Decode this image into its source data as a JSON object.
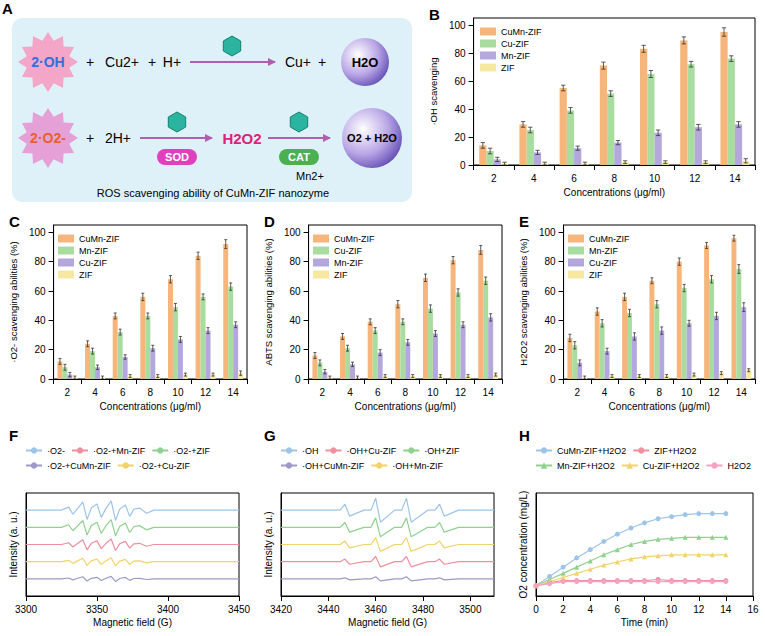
{
  "diagram": {
    "panel": "A",
    "caption": "ROS scavenging ability of CuMn-ZIF nanozyme",
    "operator": "+",
    "reaction1": {
      "reactants": [
        "2·OH",
        "Cu2+",
        "H+"
      ],
      "products": [
        "Cu+",
        "H2O"
      ]
    },
    "reaction2": {
      "reactants": [
        "2·O2-",
        "2H+"
      ],
      "enzyme1": "SOD",
      "intermediate": "H2O2",
      "enzyme2": "CAT",
      "cofactor": "Mn2+",
      "products": [
        "O2 + H2O"
      ]
    }
  },
  "chart_data": [
    {
      "panel": "B",
      "type": "bar",
      "x_label": "Concentrations (μg/ml)",
      "y_label": "·OH scavenging",
      "categories": [
        2,
        4,
        6,
        8,
        10,
        12,
        14
      ],
      "ylim": [
        0,
        105
      ],
      "yticks": [
        0,
        20,
        40,
        60,
        80,
        100
      ],
      "grid": false,
      "legend": "top-left",
      "series": [
        {
          "name": "CuMn-ZIF",
          "color": "#F6B57A",
          "values": [
            14,
            29,
            55,
            71,
            83,
            89,
            95
          ],
          "errors": [
            2,
            2,
            2,
            2.5,
            2.5,
            2.5,
            3
          ]
        },
        {
          "name": "Cu-ZIF",
          "color": "#A9DDA0",
          "values": [
            10,
            25,
            39,
            51,
            65,
            72,
            76
          ],
          "errors": [
            2,
            2,
            2,
            2,
            2.5,
            2,
            2
          ]
        },
        {
          "name": "Mn-ZIF",
          "color": "#B4A7DC",
          "values": [
            4,
            9,
            12,
            16,
            23,
            27,
            29
          ],
          "errors": [
            1.5,
            1.5,
            1.5,
            1.5,
            2,
            2,
            2
          ]
        },
        {
          "name": "ZIF",
          "color": "#F7E8A0",
          "values": [
            1,
            1,
            1,
            2,
            2,
            2,
            3
          ],
          "errors": [
            1,
            1,
            1,
            1,
            1,
            1,
            1.5
          ]
        }
      ]
    },
    {
      "panel": "C",
      "type": "bar",
      "x_label": "Concentrations (μg/ml)",
      "y_label": "·O2- scavenging abilities (%)",
      "categories": [
        2,
        4,
        6,
        8,
        10,
        12,
        14
      ],
      "ylim": [
        0,
        105
      ],
      "yticks": [
        0,
        20,
        40,
        60,
        80,
        100
      ],
      "grid": false,
      "legend": "top-left",
      "series": [
        {
          "name": "CuMn-ZIF",
          "color": "#F6B57A",
          "values": [
            12,
            24,
            43,
            56,
            68,
            84,
            92
          ],
          "errors": [
            2,
            2,
            2,
            2.5,
            2.5,
            2.5,
            3
          ]
        },
        {
          "name": "Mn-ZIF",
          "color": "#A9DDA0",
          "values": [
            8,
            19,
            32,
            43,
            49,
            56,
            63
          ],
          "errors": [
            2,
            2,
            2,
            2,
            2.5,
            2,
            2.5
          ]
        },
        {
          "name": "Cu-ZIF",
          "color": "#B4A7DC",
          "values": [
            3,
            8,
            15,
            21,
            27,
            33,
            37
          ],
          "errors": [
            1.5,
            1.5,
            1.5,
            2,
            2,
            2,
            2
          ]
        },
        {
          "name": "ZIF",
          "color": "#F7E8A0",
          "values": [
            1,
            1,
            2,
            2,
            3,
            3,
            4
          ],
          "errors": [
            1,
            1,
            1,
            1,
            1,
            1,
            1.5
          ]
        }
      ]
    },
    {
      "panel": "D",
      "type": "bar",
      "x_label": "Concentrations (μg/ml)",
      "y_label": "ABTS scavenging abilities (%)",
      "categories": [
        2,
        4,
        6,
        8,
        10,
        12,
        14
      ],
      "ylim": [
        0,
        105
      ],
      "yticks": [
        0,
        20,
        40,
        60,
        80,
        100
      ],
      "grid": false,
      "legend": "top-left",
      "series": [
        {
          "name": "CuMn-ZIF",
          "color": "#F6B57A",
          "values": [
            16,
            29,
            39,
            51,
            69,
            81,
            88
          ],
          "errors": [
            2,
            2,
            2,
            2.5,
            2.5,
            2.5,
            3
          ]
        },
        {
          "name": "Cu-ZIF",
          "color": "#A9DDA0",
          "values": [
            11,
            21,
            33,
            39,
            48,
            59,
            67
          ],
          "errors": [
            2,
            2,
            2,
            2,
            2.5,
            2.5,
            2.5
          ]
        },
        {
          "name": "Mn-ZIF",
          "color": "#B4A7DC",
          "values": [
            5,
            10,
            18,
            25,
            31,
            37,
            42
          ],
          "errors": [
            1.5,
            1.5,
            2,
            2,
            2,
            2,
            2.5
          ]
        },
        {
          "name": "ZIF",
          "color": "#F7E8A0",
          "values": [
            1,
            1,
            2,
            2,
            2,
            2,
            3
          ],
          "errors": [
            1,
            1,
            1,
            1,
            1,
            1,
            1
          ]
        }
      ]
    },
    {
      "panel": "E",
      "type": "bar",
      "x_label": "Concentrations (μg/ml)",
      "y_label": "H2O2 scavenging abilities (%)",
      "categories": [
        2,
        4,
        6,
        8,
        10,
        12,
        14
      ],
      "ylim": [
        0,
        105
      ],
      "yticks": [
        0,
        20,
        40,
        60,
        80,
        100
      ],
      "grid": false,
      "legend": "top-left",
      "series": [
        {
          "name": "CuMn-ZIF",
          "color": "#F6B57A",
          "values": [
            28,
            46,
            56,
            67,
            80,
            91,
            96
          ],
          "errors": [
            2.5,
            2.5,
            2.5,
            2,
            2.5,
            2,
            2
          ]
        },
        {
          "name": "Mn-ZIF",
          "color": "#A9DDA0",
          "values": [
            23,
            38,
            45,
            51,
            62,
            68,
            75
          ],
          "errors": [
            2.5,
            2.5,
            2.5,
            2.5,
            2.5,
            2.5,
            3
          ]
        },
        {
          "name": "Cu-ZIF",
          "color": "#B4A7DC",
          "values": [
            11,
            19,
            29,
            33,
            38,
            43,
            49
          ],
          "errors": [
            2,
            2,
            2.5,
            2.5,
            2,
            2.5,
            3
          ]
        },
        {
          "name": "ZIF",
          "color": "#F7E8A0",
          "values": [
            1,
            2,
            2,
            2,
            3,
            4,
            6
          ],
          "errors": [
            1,
            1,
            1,
            1,
            1,
            1,
            1
          ]
        }
      ]
    },
    {
      "panel": "F",
      "type": "line",
      "x_label": "Magnetic field (G)",
      "y_label": "Intensity (a. u.)",
      "xlim": [
        3300,
        3450
      ],
      "xticks": [
        3300,
        3350,
        3400,
        3450
      ],
      "ylim": [
        0,
        6
      ],
      "tick_labels": "x",
      "grid": false,
      "legend": "top",
      "x": [
        3300,
        3310,
        3320,
        3325,
        3330,
        3333,
        3336,
        3340,
        3343,
        3346,
        3350,
        3353,
        3356,
        3360,
        3363,
        3366,
        3370,
        3373,
        3376,
        3380,
        3385,
        3390,
        3400,
        3420,
        3450
      ],
      "series": [
        {
          "name": "·O2-",
          "color": "#9EC5E8",
          "marker": "none",
          "line_style": "solid",
          "values": [
            5,
            5,
            5,
            5,
            5.18,
            4.76,
            5.06,
            5.48,
            4.46,
            5.12,
            5.36,
            4.58,
            5.06,
            5.54,
            4.4,
            5.06,
            5.3,
            4.64,
            5.06,
            5.12,
            4.82,
            5,
            5,
            5,
            5
          ]
        },
        {
          "name": "·O2-+Mn-ZIF",
          "color": "#F08FA0",
          "marker": "none",
          "line_style": "solid",
          "values": [
            3,
            3,
            3,
            3,
            3.1,
            2.86,
            3.04,
            3.28,
            2.69,
            3.07,
            3.21,
            2.76,
            3.04,
            3.32,
            2.65,
            3.04,
            3.18,
            2.79,
            3.04,
            3.07,
            2.9,
            3,
            3,
            3,
            3
          ]
        },
        {
          "name": "·O2-+ZIF",
          "color": "#8FD18F",
          "marker": "none",
          "line_style": "solid",
          "values": [
            4,
            4,
            4,
            4,
            4.15,
            3.8,
            4.05,
            4.4,
            3.55,
            4.1,
            4.3,
            3.65,
            4.05,
            4.45,
            3.5,
            4.05,
            4.25,
            3.7,
            4.05,
            4.1,
            3.85,
            4,
            4,
            4,
            4
          ]
        },
        {
          "name": "·O2-+CuMn-ZIF",
          "color": "#9C9AC8",
          "marker": "none",
          "line_style": "solid",
          "values": [
            1,
            1,
            1,
            1,
            1.05,
            0.94,
            1.02,
            1.12,
            0.87,
            1.03,
            1.09,
            0.9,
            1.02,
            1.14,
            0.85,
            1.02,
            1.08,
            0.91,
            1.02,
            1.03,
            0.96,
            1,
            1,
            1,
            1
          ]
        },
        {
          "name": "·O2-+Cu-ZIF",
          "color": "#F2D36B",
          "marker": "none",
          "line_style": "solid",
          "values": [
            2,
            2,
            2,
            2,
            2.08,
            1.9,
            2.03,
            2.2,
            1.78,
            2.05,
            2.15,
            1.83,
            2.03,
            2.23,
            1.75,
            2.03,
            2.13,
            1.85,
            2.03,
            2.05,
            1.93,
            2,
            2,
            2,
            2
          ]
        }
      ]
    },
    {
      "panel": "G",
      "type": "line",
      "x_label": "Magnetic field (G)",
      "y_label": "Intensity (a. u.)",
      "xlim": [
        3420,
        3510
      ],
      "xticks": [
        3420,
        3440,
        3460,
        3480,
        3500
      ],
      "ylim": [
        0,
        6
      ],
      "tick_labels": "x",
      "grid": false,
      "legend": "top",
      "x": [
        3420,
        3430,
        3440,
        3445,
        3447,
        3449,
        3455,
        3458,
        3460,
        3462,
        3468,
        3471,
        3473,
        3475,
        3482,
        3485,
        3487,
        3489,
        3495,
        3510
      ],
      "series": [
        {
          "name": "·OH",
          "color": "#9EC5E8",
          "marker": "none",
          "line_style": "solid",
          "values": [
            5,
            5,
            5,
            5,
            5.35,
            4.65,
            5,
            5,
            5.7,
            4.3,
            5,
            5,
            5.7,
            4.3,
            5,
            5,
            5.35,
            4.65,
            5,
            5
          ]
        },
        {
          "name": "·OH+Cu-ZIF",
          "color": "#F08FA0",
          "marker": "none",
          "line_style": "solid",
          "values": [
            2,
            2,
            2,
            2,
            2.15,
            1.85,
            2,
            2,
            2.3,
            1.7,
            2,
            2,
            2.3,
            1.7,
            2,
            2,
            2.15,
            1.85,
            2,
            2
          ]
        },
        {
          "name": "·OH+ZIF",
          "color": "#8FD18F",
          "marker": "none",
          "line_style": "solid",
          "values": [
            4,
            4,
            4,
            4,
            4.28,
            3.72,
            4,
            4,
            4.55,
            3.45,
            4,
            4,
            4.55,
            3.45,
            4,
            4,
            4.28,
            3.72,
            4,
            4
          ]
        },
        {
          "name": "·OH+CuMn-ZIF",
          "color": "#9C9AC8",
          "marker": "none",
          "line_style": "solid",
          "values": [
            1,
            1,
            1,
            1,
            1.06,
            0.94,
            1,
            1,
            1.12,
            0.88,
            1,
            1,
            1.12,
            0.88,
            1,
            1,
            1.06,
            0.94,
            1,
            1
          ]
        },
        {
          "name": "·OH+Mn-ZIF",
          "color": "#F2D36B",
          "marker": "none",
          "line_style": "solid",
          "values": [
            3,
            3,
            3,
            3,
            3.2,
            2.8,
            3,
            3,
            3.4,
            2.6,
            3,
            3,
            3.4,
            2.6,
            3,
            3,
            3.2,
            2.8,
            3,
            3
          ]
        }
      ]
    },
    {
      "panel": "H",
      "type": "line",
      "x_label": "Time (min)",
      "y_label": "O2 concentration (mg/L)",
      "xlim": [
        0,
        16
      ],
      "xticks": [
        0,
        2,
        4,
        6,
        8,
        10,
        12,
        14,
        16
      ],
      "ylim": [
        0,
        10
      ],
      "tick_labels": "x",
      "grid": false,
      "legend": "top",
      "x": [
        0,
        1,
        2,
        3,
        4,
        5,
        6,
        7,
        8,
        9,
        10,
        11,
        12,
        13,
        14
      ],
      "series": [
        {
          "name": "CuMn-ZIF+H2O2",
          "color": "#9EC5E8",
          "marker": "circle",
          "line_style": "solid",
          "values": [
            1,
            1.9,
            2.8,
            3.7,
            4.5,
            5.3,
            6.0,
            6.6,
            7.1,
            7.5,
            7.7,
            7.9,
            8.0,
            8.0,
            8.0
          ]
        },
        {
          "name": "ZIF+H2O2",
          "color": "#F08FA0",
          "marker": "circle",
          "line_style": "solid",
          "values": [
            1,
            1.3,
            1.5,
            1.5,
            1.5,
            1.5,
            1.5,
            1.5,
            1.5,
            1.6,
            1.5,
            1.5,
            1.5,
            1.5,
            1.5
          ]
        },
        {
          "name": "Mn-ZIF+H2O2",
          "color": "#8FD18F",
          "marker": "triangle",
          "line_style": "solid",
          "values": [
            1,
            1.6,
            2.2,
            2.8,
            3.4,
            4.0,
            4.5,
            5.0,
            5.3,
            5.5,
            5.6,
            5.7,
            5.7,
            5.7,
            5.7
          ]
        },
        {
          "name": "Cu-ZIF+H2O2",
          "color": "#F2D36B",
          "marker": "triangle",
          "line_style": "solid",
          "values": [
            1,
            1.4,
            1.8,
            2.2,
            2.6,
            3.0,
            3.3,
            3.6,
            3.8,
            3.9,
            4.0,
            4.0,
            4.0,
            4.0,
            4.0
          ]
        },
        {
          "name": "H2O2",
          "color": "#F4A3C0",
          "marker": "circle",
          "line_style": "solid",
          "values": [
            1,
            1.2,
            1.4,
            1.4,
            1.4,
            1.4,
            1.4,
            1.4,
            1.4,
            1.4,
            1.4,
            1.4,
            1.4,
            1.4,
            1.4
          ]
        }
      ]
    }
  ]
}
